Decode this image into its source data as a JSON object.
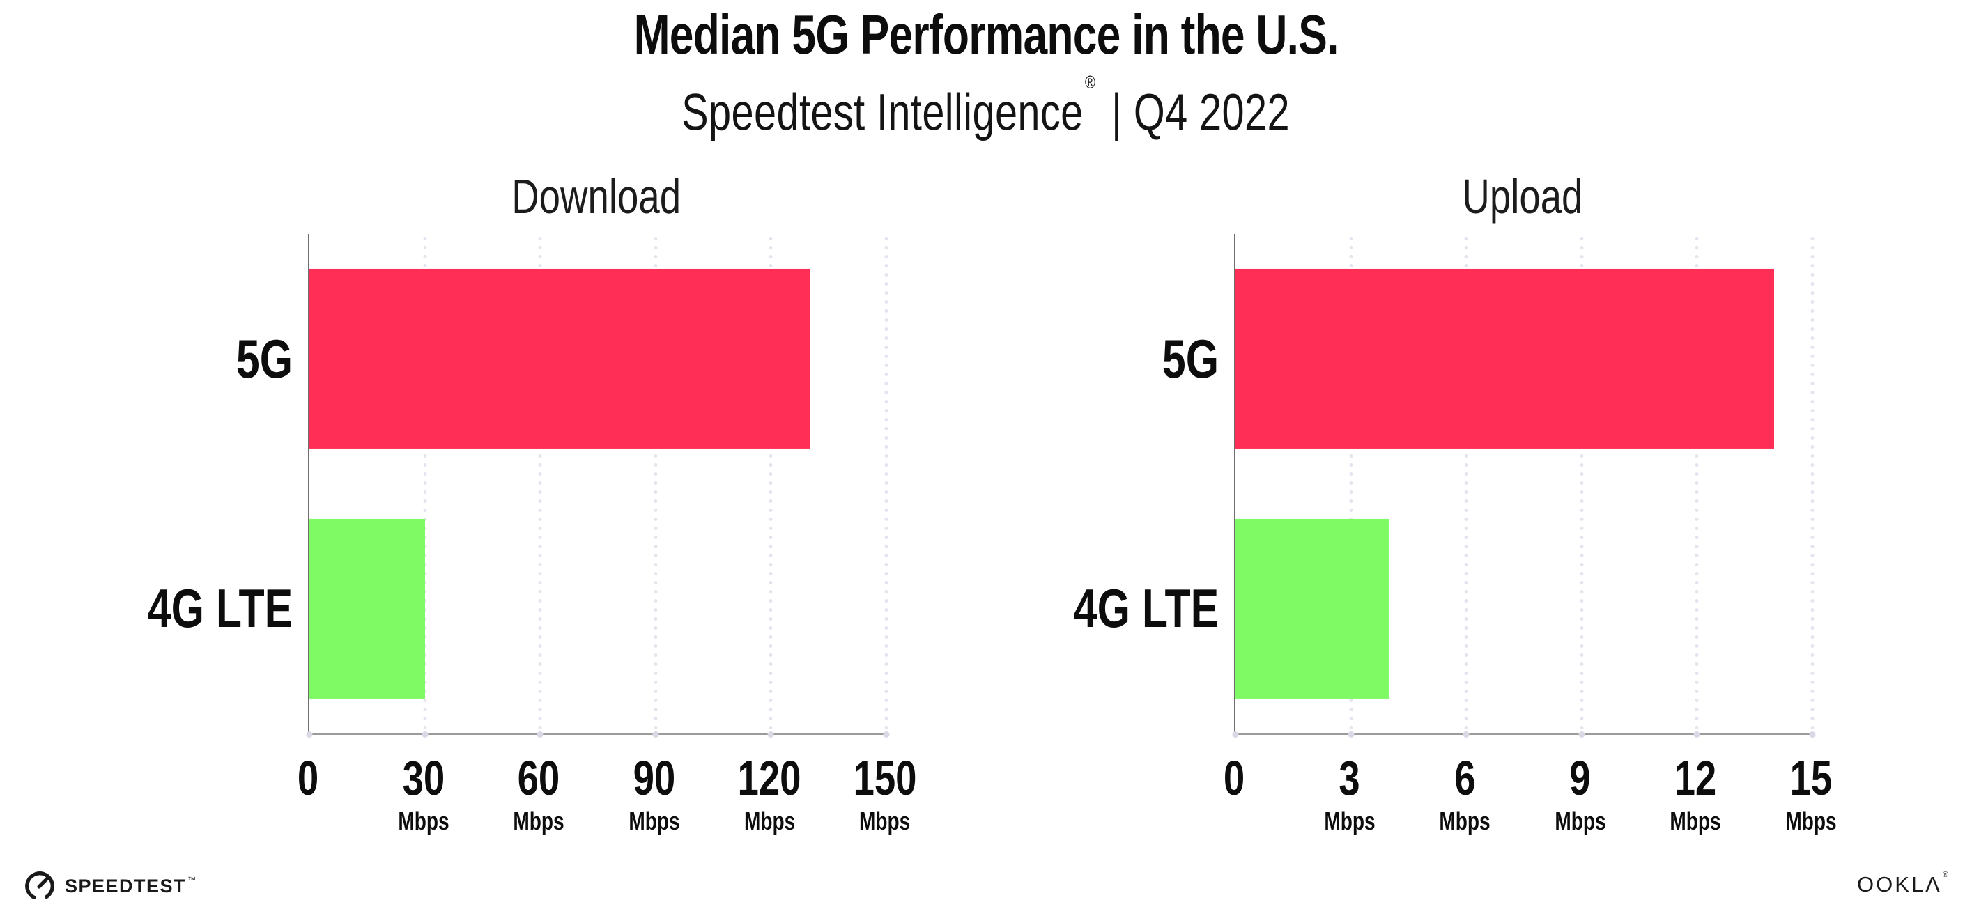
{
  "header": {
    "title": "Median 5G Performance in the U.S.",
    "subtitle_brand": "Speedtest Intelligence",
    "subtitle_reg": "®",
    "subtitle_rest": " | Q4 2022"
  },
  "chart_data": [
    {
      "type": "bar",
      "orientation": "horizontal",
      "title": "Download",
      "categories": [
        "5G",
        "4G LTE"
      ],
      "values": [
        130,
        30
      ],
      "unit": "Mbps",
      "xlabel": "",
      "ylabel": "",
      "xlim": [
        0,
        150
      ],
      "xticks": [
        0,
        30,
        60,
        90,
        120,
        150
      ],
      "bar_colors": [
        "#ff2e56",
        "#80fa64"
      ],
      "grid": "dotted-vertical-gridlines",
      "legend": "none"
    },
    {
      "type": "bar",
      "orientation": "horizontal",
      "title": "Upload",
      "categories": [
        "5G",
        "4G LTE"
      ],
      "values": [
        14,
        4
      ],
      "unit": "Mbps",
      "xlabel": "",
      "ylabel": "",
      "xlim": [
        0,
        15
      ],
      "xticks": [
        0,
        3,
        6,
        9,
        12,
        15
      ],
      "bar_colors": [
        "#ff2e56",
        "#80fa64"
      ],
      "grid": "dotted-vertical-gridlines",
      "legend": "none"
    }
  ],
  "footer": {
    "speedtest_label": "SPEEDTEST",
    "speedtest_tm": "™",
    "speedtest_icon": "gauge-icon",
    "ookla_prefix": "OOKL",
    "ookla_lambda": "Λ",
    "ookla_reg": "®"
  },
  "colors": {
    "bar_5g": "#ff2e56",
    "bar_4g_lte": "#80fa64",
    "axis_line": "#9b9b9b",
    "axis_spine": "#6f6f6f",
    "grid_dot": "#e4e4ee",
    "tick_dot": "#d9d9e6",
    "text": "#0d0d0d",
    "background": "#ffffff"
  }
}
